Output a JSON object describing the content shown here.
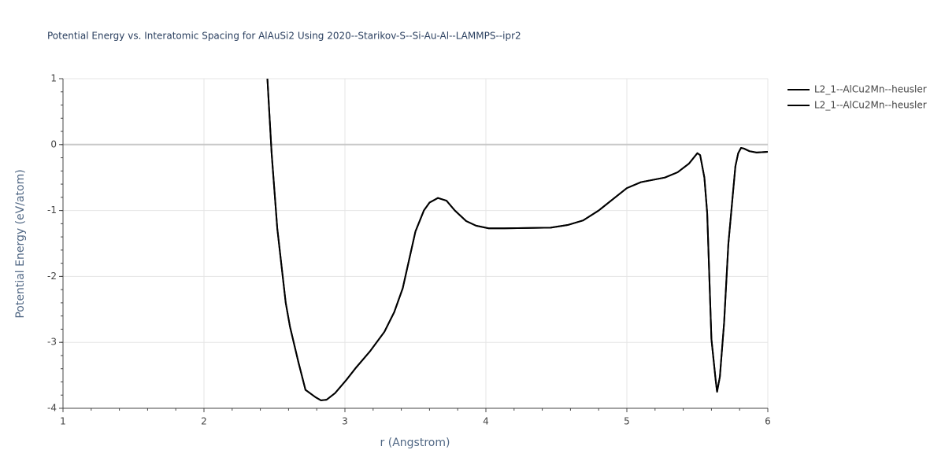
{
  "chart_data": {
    "type": "line",
    "title": "Potential Energy vs. Interatomic Spacing for AlAuSi2 Using 2020--Starikov-S--Si-Au-Al--LAMMPS--ipr2",
    "x_label": "r (Angstrom)",
    "y_label": "Potential Energy (eV/atom)",
    "xlim": [
      1,
      6
    ],
    "ylim": [
      -4,
      1
    ],
    "xticks": [
      1,
      2,
      3,
      4,
      5,
      6
    ],
    "yticks": [
      -4,
      -3,
      -2,
      -1,
      0,
      1
    ],
    "grid": true,
    "legend": "top-right",
    "x": [
      2.45,
      2.48,
      2.52,
      2.58,
      2.61,
      2.67,
      2.72,
      2.79,
      2.83,
      2.87,
      2.93,
      3.01,
      3.08,
      3.18,
      3.28,
      3.35,
      3.41,
      3.5,
      3.56,
      3.6,
      3.66,
      3.72,
      3.78,
      3.86,
      3.93,
      4.02,
      4.13,
      4.46,
      4.58,
      4.69,
      4.8,
      5.0,
      5.1,
      5.27,
      5.36,
      5.44,
      5.5,
      5.52,
      5.55,
      5.57,
      5.6,
      5.63,
      5.64,
      5.66,
      5.69,
      5.72,
      5.75,
      5.77,
      5.79,
      5.81,
      5.83,
      5.87,
      5.92,
      6.0
    ],
    "series": [
      {
        "name": "L2_1--AlCu2Mn--heusler",
        "color": "#000000",
        "values": [
          1.0,
          -0.13,
          -1.27,
          -2.4,
          -2.76,
          -3.3,
          -3.72,
          -3.83,
          -3.88,
          -3.87,
          -3.77,
          -3.57,
          -3.38,
          -3.13,
          -2.84,
          -2.54,
          -2.18,
          -1.32,
          -1.0,
          -0.88,
          -0.81,
          -0.85,
          -1.0,
          -1.16,
          -1.23,
          -1.27,
          -1.27,
          -1.26,
          -1.22,
          -1.15,
          -1.0,
          -0.66,
          -0.57,
          -0.5,
          -0.42,
          -0.29,
          -0.13,
          -0.16,
          -0.5,
          -1.04,
          -2.95,
          -3.57,
          -3.75,
          -3.52,
          -2.7,
          -1.51,
          -0.8,
          -0.33,
          -0.13,
          -0.05,
          -0.06,
          -0.1,
          -0.12,
          -0.11
        ]
      },
      {
        "name": "L2_1--AlCu2Mn--heusler",
        "color": "#000000",
        "values": [
          1.0,
          -0.13,
          -1.27,
          -2.4,
          -2.76,
          -3.3,
          -3.72,
          -3.83,
          -3.88,
          -3.87,
          -3.77,
          -3.57,
          -3.38,
          -3.13,
          -2.84,
          -2.54,
          -2.18,
          -1.32,
          -1.0,
          -0.88,
          -0.81,
          -0.85,
          -1.0,
          -1.16,
          -1.23,
          -1.27,
          -1.27,
          -1.26,
          -1.22,
          -1.15,
          -1.0,
          -0.66,
          -0.57,
          -0.5,
          -0.42,
          -0.29,
          -0.13,
          -0.16,
          -0.5,
          -1.04,
          -2.95,
          -3.57,
          -3.75,
          -3.52,
          -2.7,
          -1.51,
          -0.8,
          -0.33,
          -0.13,
          -0.05,
          -0.06,
          -0.1,
          -0.12,
          -0.11
        ]
      }
    ]
  }
}
